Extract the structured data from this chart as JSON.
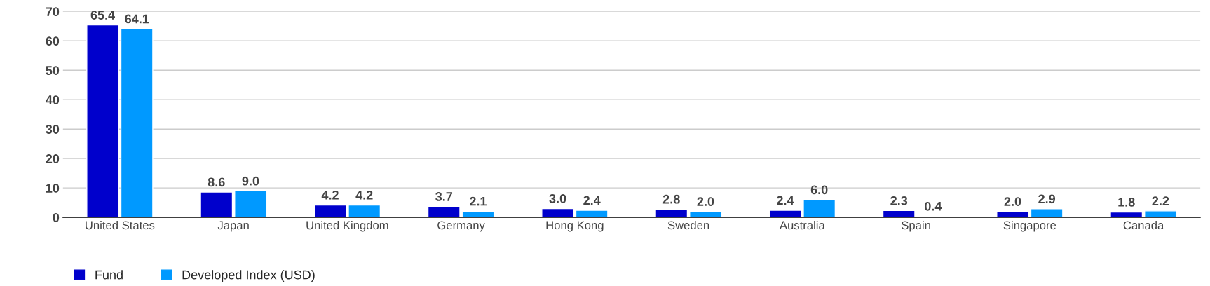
{
  "chart_data": {
    "type": "bar",
    "categories": [
      "United States",
      "Japan",
      "United Kingdom",
      "Germany",
      "Hong Kong",
      "Sweden",
      "Australia",
      "Spain",
      "Singapore",
      "Canada"
    ],
    "series": [
      {
        "name": "Fund",
        "color": "#0000cc",
        "values": [
          65.4,
          8.6,
          4.2,
          3.7,
          3.0,
          2.8,
          2.4,
          2.3,
          2.0,
          1.8
        ]
      },
      {
        "name": "Developed Index (USD)",
        "color": "#0099ff",
        "values": [
          64.1,
          9.0,
          4.2,
          2.1,
          2.4,
          2.0,
          6.0,
          0.4,
          2.9,
          2.2
        ]
      }
    ],
    "value_labels": [
      [
        "65.4",
        "8.6",
        "4.2",
        "3.7",
        "3.0",
        "2.8",
        "2.4",
        "2.3",
        "2.0",
        "1.8"
      ],
      [
        "64.1",
        "9.0",
        "4.2",
        "2.1",
        "2.4",
        "2.0",
        "6.0",
        "0.4",
        "2.9",
        "2.2"
      ]
    ],
    "ylim": [
      0,
      70
    ],
    "yticks": [
      0,
      10,
      20,
      30,
      40,
      50,
      60,
      70
    ],
    "grid": "y",
    "legend": "bottom left"
  }
}
